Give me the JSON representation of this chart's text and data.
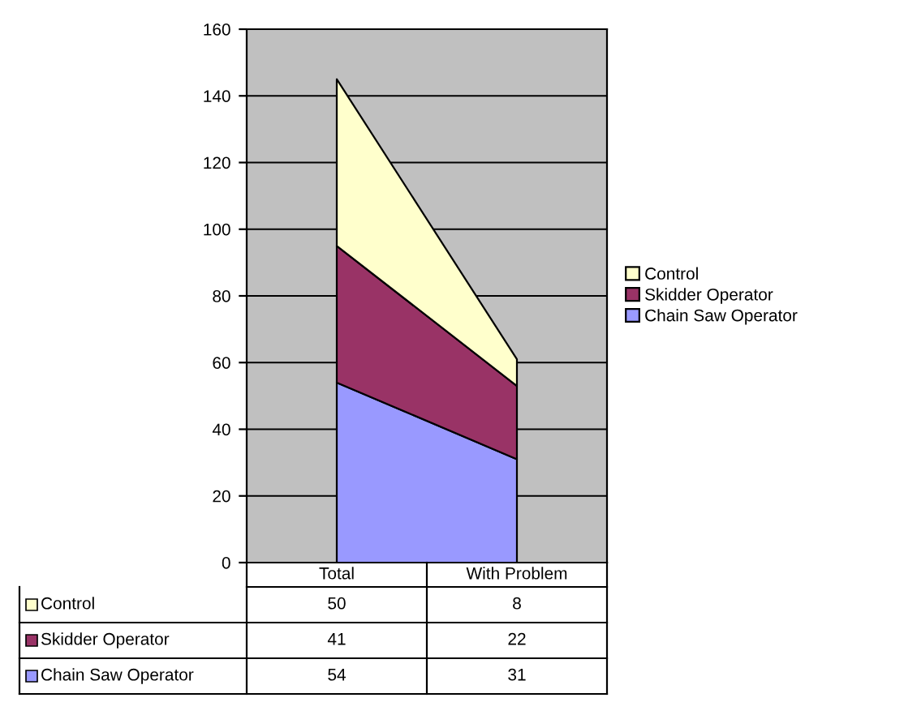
{
  "chart_data": {
    "type": "area",
    "stacked": true,
    "categories": [
      "Total",
      "With Problem"
    ],
    "series": [
      {
        "name": "Chain Saw Operator",
        "color": "#9999ff",
        "values": [
          54,
          31
        ]
      },
      {
        "name": "Skidder Operator",
        "color": "#993366",
        "values": [
          41,
          22
        ]
      },
      {
        "name": "Control",
        "color": "#ffffcc",
        "values": [
          50,
          8
        ]
      }
    ],
    "ylim": [
      0,
      160
    ],
    "yticks": [
      0,
      20,
      40,
      60,
      80,
      100,
      120,
      140,
      160
    ],
    "grid": "y",
    "legend": "right",
    "data_labels": true
  }
}
